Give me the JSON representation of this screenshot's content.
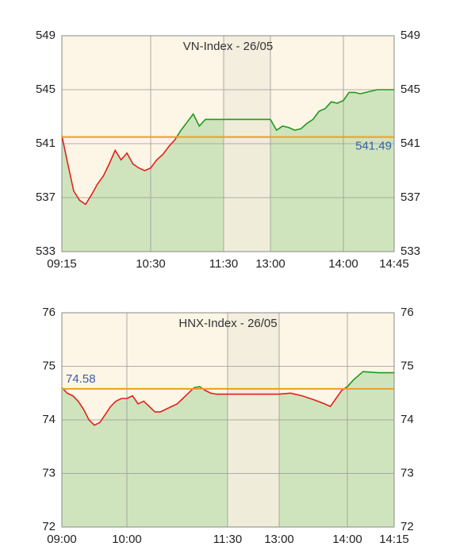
{
  "chart_data": [
    {
      "type": "line",
      "title": "VN-Index - 26/05",
      "x": [
        "09:15",
        "09:20",
        "09:25",
        "09:30",
        "09:35",
        "09:40",
        "09:45",
        "09:50",
        "09:55",
        "10:00",
        "10:05",
        "10:10",
        "10:15",
        "10:20",
        "10:25",
        "10:30",
        "10:35",
        "10:40",
        "10:45",
        "10:50",
        "10:55",
        "11:00",
        "11:05",
        "11:10",
        "11:15",
        "11:20",
        "11:30",
        "13:00",
        "13:05",
        "13:10",
        "13:15",
        "13:20",
        "13:25",
        "13:30",
        "13:35",
        "13:40",
        "13:45",
        "13:50",
        "13:55",
        "14:00",
        "14:05",
        "14:10",
        "14:15",
        "14:20",
        "14:30",
        "14:45"
      ],
      "values": [
        541.6,
        539.5,
        537.5,
        536.8,
        536.5,
        537.2,
        538.0,
        538.6,
        539.5,
        540.5,
        539.8,
        540.3,
        539.5,
        539.2,
        539.0,
        539.2,
        539.8,
        540.2,
        540.8,
        541.3,
        542.0,
        542.6,
        543.2,
        542.3,
        542.8,
        542.8,
        542.8,
        542.8,
        542.0,
        542.3,
        542.2,
        542.0,
        542.1,
        542.5,
        542.8,
        543.4,
        543.6,
        544.1,
        544.0,
        544.2,
        544.8,
        544.8,
        544.7,
        544.8,
        545.0,
        545.0
      ],
      "reference": 541.49,
      "xticks": [
        "09:15",
        "10:30",
        "11:30",
        "13:00",
        "14:00",
        "14:45"
      ],
      "break": [
        "11:30",
        "13:00"
      ],
      "ylim": [
        533,
        549
      ],
      "yticks": [
        533,
        537,
        541,
        545,
        549
      ],
      "grid": true,
      "colors": {
        "up": "#1e9a1e",
        "down": "#e3201b",
        "reference": "#f39c1c",
        "area": "#cfe4bd",
        "background": "#fdf5e5",
        "break": "#f2eddb"
      }
    },
    {
      "type": "line",
      "title": "HNX-Index - 26/05",
      "x": [
        "09:00",
        "09:05",
        "09:10",
        "09:15",
        "09:20",
        "09:25",
        "09:30",
        "09:35",
        "09:40",
        "09:45",
        "09:50",
        "09:55",
        "10:00",
        "10:05",
        "10:10",
        "10:15",
        "10:20",
        "10:25",
        "10:30",
        "10:35",
        "10:40",
        "10:45",
        "10:50",
        "10:55",
        "11:00",
        "11:05",
        "11:10",
        "11:15",
        "11:20",
        "11:30",
        "13:00",
        "13:10",
        "13:20",
        "13:30",
        "13:40",
        "13:45",
        "13:50",
        "13:55",
        "14:00",
        "14:02",
        "14:05",
        "14:10",
        "14:15"
      ],
      "values": [
        74.6,
        74.5,
        74.45,
        74.35,
        74.2,
        74.0,
        73.9,
        73.95,
        74.1,
        74.25,
        74.35,
        74.4,
        74.4,
        74.45,
        74.3,
        74.35,
        74.25,
        74.15,
        74.15,
        74.2,
        74.25,
        74.3,
        74.4,
        74.5,
        74.6,
        74.62,
        74.55,
        74.5,
        74.48,
        74.48,
        74.48,
        74.5,
        74.45,
        74.38,
        74.3,
        74.25,
        74.4,
        74.55,
        74.62,
        74.75,
        74.9,
        74.88,
        74.88
      ],
      "reference": 74.58,
      "xticks": [
        "09:00",
        "10:00",
        "11:30",
        "13:00",
        "14:00",
        "14:15"
      ],
      "break": [
        "11:30",
        "13:00"
      ],
      "ylim": [
        72,
        76
      ],
      "yticks": [
        72,
        73,
        74,
        75,
        76
      ],
      "grid": true,
      "colors": {
        "up": "#1e9a1e",
        "down": "#e3201b",
        "reference": "#f39c1c",
        "area": "#cfe4bd",
        "background": "#fdf5e5",
        "break": "#f2eddb"
      }
    }
  ]
}
